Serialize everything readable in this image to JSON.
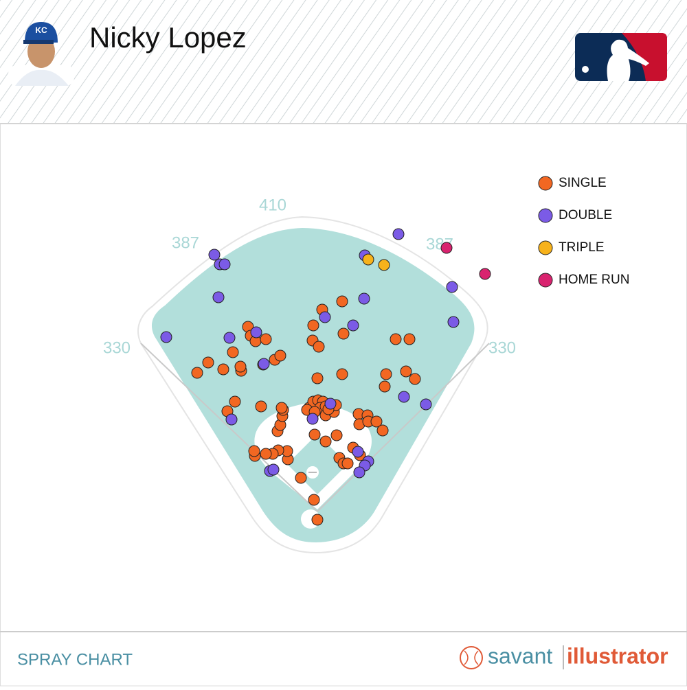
{
  "header": {
    "player_name": "Nicky Lopez"
  },
  "chart_data": {
    "type": "scatter",
    "xlim": [
      -462,
      538
    ],
    "ylim": [
      -243,
      757
    ],
    "wall_distances": [
      330,
      387,
      410,
      387,
      330
    ],
    "legend": "top-right",
    "series": [
      {
        "name": "SINGLE",
        "color": "#f26722",
        "x": [
          0,
          -5,
          -24,
          -43,
          -44,
          -57,
          -65,
          -75,
          -91,
          -92,
          -58,
          -54,
          -51,
          -50,
          -52,
          -82,
          -120,
          -131,
          -4,
          12,
          28,
          0,
          36,
          32,
          38,
          44,
          52,
          62,
          60,
          61,
          73,
          74,
          86,
          95,
          100,
          98,
          129,
          142,
          114,
          134,
          -175,
          -159,
          -137,
          -123,
          -111,
          -112,
          -79,
          -62,
          -54,
          -101,
          -97,
          -90,
          -75,
          -6,
          7,
          36,
          38,
          -7,
          2,
          -12,
          -6,
          1,
          8,
          4,
          12,
          12,
          24,
          27,
          -15,
          -4,
          16
        ],
        "y": [
          0,
          29,
          61,
          88,
          100,
          101,
          96,
          96,
          93,
          100,
          129,
          138,
          151,
          160,
          163,
          165,
          172,
          158,
          124,
          114,
          123,
          206,
          212,
          90,
          82,
          82,
          105,
          94,
          154,
          139,
          152,
          143,
          143,
          130,
          212,
          194,
          216,
          205,
          263,
          263,
          214,
          229,
          219,
          244,
          217,
          223,
          226,
          233,
          239,
          281,
          268,
          260,
          263,
          283,
          306,
          318,
          271,
          261,
          252,
          163,
          172,
          174,
          172,
          163,
          165,
          152,
          157,
          167,
          160,
          157,
          161
        ]
      },
      {
        "name": "DOUBLE",
        "color": "#7b5be6",
        "x": [
          -150,
          -142,
          -135,
          -144,
          -220,
          -128,
          -89,
          -78,
          -125,
          -69,
          -64,
          -7,
          19,
          11,
          52,
          68,
          69,
          118,
          196,
          198,
          126,
          158,
          59,
          74,
          69,
          61
        ],
        "y": [
          386,
          372,
          372,
          324,
          266,
          265,
          273,
          227,
          146,
          71,
          73,
          147,
          169,
          295,
          283,
          322,
          385,
          416,
          339,
          288,
          179,
          168,
          99,
          85,
          79,
          69
        ]
      },
      {
        "name": "TRIPLE",
        "color": "#f7b21b",
        "x": [
          74,
          97
        ],
        "y": [
          379,
          371
        ]
      },
      {
        "name": "HOME RUN",
        "color": "#d9236f",
        "x": [
          188,
          244
        ],
        "y": [
          396,
          358
        ]
      }
    ]
  },
  "footer": {
    "label": "SPRAY CHART",
    "brand_left": "savant",
    "brand_right": "illustrator"
  }
}
